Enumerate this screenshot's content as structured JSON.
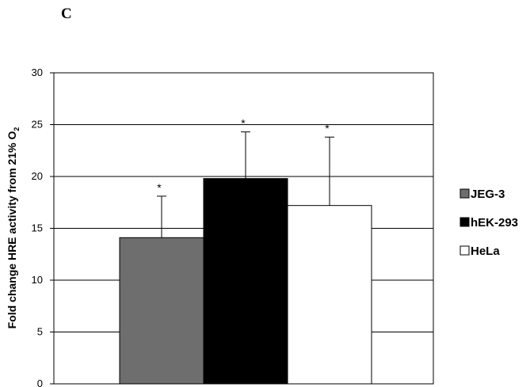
{
  "panel_label": "C",
  "chart_data": {
    "type": "bar",
    "categories": [
      "JEG-3",
      "hEK-293",
      "HeLa"
    ],
    "values": [
      14.1,
      19.8,
      17.2
    ],
    "error_plus": [
      4.0,
      4.5,
      6.6
    ],
    "annotations": [
      "*",
      "*",
      "*"
    ],
    "colors": [
      "#6e6e6e",
      "#000000",
      "#ffffff"
    ],
    "ylabel_main": "Fold change HRE activity from 21% O",
    "ylabel_sub": "2",
    "ylim": [
      0,
      30
    ],
    "yticks": [
      0,
      5,
      10,
      15,
      20,
      25,
      30
    ],
    "grid": true,
    "legend": {
      "placement": "right",
      "entries": [
        "JEG-3",
        "hEK-293",
        "HeLa"
      ]
    }
  }
}
